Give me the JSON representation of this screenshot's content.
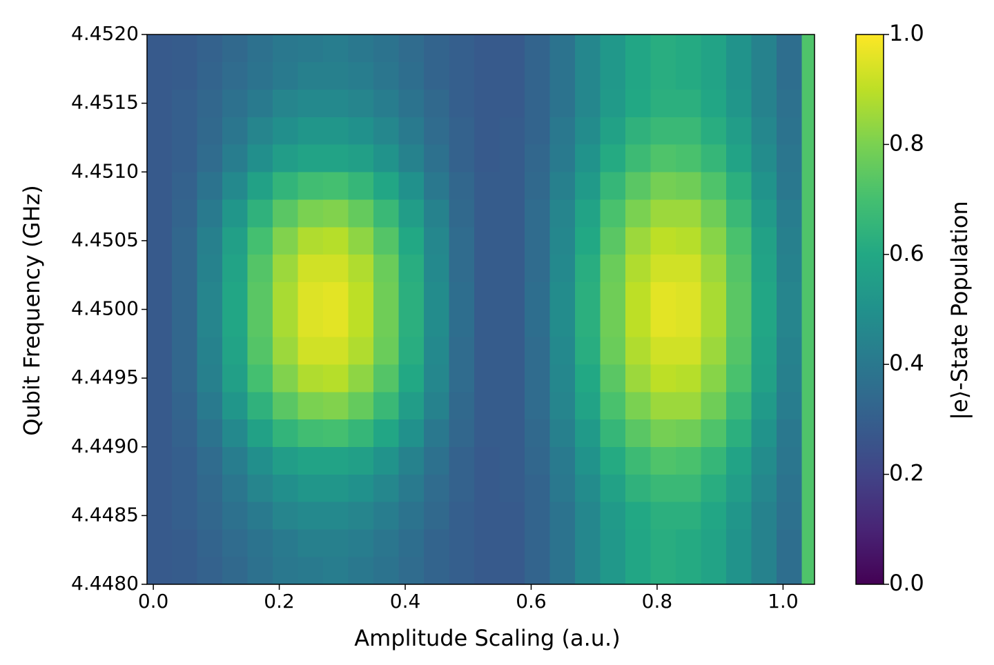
{
  "chart_data": {
    "type": "heatmap",
    "xlabel": "Amplitude Scaling (a.u.)",
    "ylabel": "Qubit Frequency (GHz)",
    "colormap": "viridis",
    "x_edges": [
      -0.01,
      0.03,
      0.07,
      0.11,
      0.15,
      0.19,
      0.23,
      0.27,
      0.31,
      0.35,
      0.39,
      0.43,
      0.47,
      0.51,
      0.55,
      0.59,
      0.63,
      0.67,
      0.71,
      0.75,
      0.79,
      0.83,
      0.87,
      0.91,
      0.95,
      0.99,
      1.03,
      1.05
    ],
    "y_edges": [
      4.448,
      4.4482,
      4.4484,
      4.4486,
      4.4488,
      4.449,
      4.4492,
      4.4494,
      4.4496,
      4.4498,
      4.45,
      4.4502,
      4.4504,
      4.4506,
      4.4508,
      4.451,
      4.4512,
      4.4514,
      4.4516,
      4.4518,
      4.452
    ],
    "z": [
      [
        0.28,
        0.29,
        0.31,
        0.34,
        0.37,
        0.4,
        0.41,
        0.42,
        0.4,
        0.38,
        0.35,
        0.32,
        0.3,
        0.28,
        0.28,
        0.32,
        0.38,
        0.46,
        0.53,
        0.59,
        0.62,
        0.61,
        0.58,
        0.51,
        0.44,
        0.36,
        0.72
      ],
      [
        0.28,
        0.29,
        0.32,
        0.35,
        0.38,
        0.41,
        0.43,
        0.43,
        0.42,
        0.39,
        0.36,
        0.32,
        0.3,
        0.28,
        0.28,
        0.32,
        0.38,
        0.46,
        0.53,
        0.59,
        0.62,
        0.61,
        0.58,
        0.51,
        0.44,
        0.36,
        0.72
      ],
      [
        0.28,
        0.3,
        0.33,
        0.37,
        0.41,
        0.45,
        0.47,
        0.47,
        0.45,
        0.42,
        0.38,
        0.34,
        0.3,
        0.28,
        0.28,
        0.32,
        0.38,
        0.46,
        0.54,
        0.6,
        0.63,
        0.63,
        0.59,
        0.52,
        0.44,
        0.37,
        0.72
      ],
      [
        0.28,
        0.3,
        0.34,
        0.39,
        0.45,
        0.49,
        0.52,
        0.52,
        0.5,
        0.46,
        0.41,
        0.35,
        0.31,
        0.28,
        0.29,
        0.32,
        0.4,
        0.48,
        0.57,
        0.64,
        0.67,
        0.67,
        0.62,
        0.55,
        0.46,
        0.38,
        0.72
      ],
      [
        0.28,
        0.3,
        0.35,
        0.42,
        0.49,
        0.55,
        0.58,
        0.58,
        0.56,
        0.51,
        0.44,
        0.37,
        0.31,
        0.28,
        0.29,
        0.33,
        0.41,
        0.51,
        0.61,
        0.68,
        0.72,
        0.71,
        0.66,
        0.58,
        0.48,
        0.39,
        0.72
      ],
      [
        0.28,
        0.31,
        0.38,
        0.47,
        0.57,
        0.65,
        0.69,
        0.7,
        0.66,
        0.59,
        0.5,
        0.4,
        0.33,
        0.29,
        0.29,
        0.34,
        0.43,
        0.54,
        0.66,
        0.74,
        0.79,
        0.78,
        0.72,
        0.63,
        0.51,
        0.4,
        0.72
      ],
      [
        0.28,
        0.32,
        0.41,
        0.52,
        0.64,
        0.74,
        0.8,
        0.81,
        0.76,
        0.67,
        0.55,
        0.44,
        0.34,
        0.29,
        0.29,
        0.35,
        0.45,
        0.58,
        0.71,
        0.8,
        0.85,
        0.85,
        0.78,
        0.67,
        0.54,
        0.42,
        0.72
      ],
      [
        0.28,
        0.33,
        0.43,
        0.56,
        0.7,
        0.81,
        0.88,
        0.89,
        0.83,
        0.73,
        0.6,
        0.46,
        0.35,
        0.29,
        0.29,
        0.35,
        0.46,
        0.6,
        0.74,
        0.85,
        0.9,
        0.89,
        0.82,
        0.71,
        0.57,
        0.43,
        0.72
      ],
      [
        0.28,
        0.33,
        0.44,
        0.58,
        0.73,
        0.85,
        0.93,
        0.93,
        0.88,
        0.77,
        0.62,
        0.47,
        0.35,
        0.29,
        0.29,
        0.35,
        0.47,
        0.62,
        0.77,
        0.88,
        0.93,
        0.93,
        0.85,
        0.73,
        0.58,
        0.44,
        0.72
      ],
      [
        0.28,
        0.33,
        0.45,
        0.59,
        0.74,
        0.87,
        0.95,
        0.96,
        0.9,
        0.78,
        0.63,
        0.48,
        0.36,
        0.29,
        0.29,
        0.36,
        0.48,
        0.63,
        0.78,
        0.9,
        0.96,
        0.95,
        0.87,
        0.74,
        0.59,
        0.45,
        0.72
      ],
      [
        0.28,
        0.33,
        0.45,
        0.59,
        0.74,
        0.87,
        0.95,
        0.96,
        0.9,
        0.78,
        0.63,
        0.48,
        0.36,
        0.29,
        0.29,
        0.36,
        0.48,
        0.63,
        0.78,
        0.9,
        0.96,
        0.95,
        0.87,
        0.74,
        0.59,
        0.45,
        0.72
      ],
      [
        0.28,
        0.33,
        0.44,
        0.58,
        0.73,
        0.85,
        0.93,
        0.93,
        0.88,
        0.77,
        0.62,
        0.47,
        0.35,
        0.29,
        0.29,
        0.35,
        0.47,
        0.62,
        0.77,
        0.88,
        0.93,
        0.93,
        0.85,
        0.73,
        0.58,
        0.44,
        0.72
      ],
      [
        0.28,
        0.33,
        0.43,
        0.56,
        0.7,
        0.81,
        0.88,
        0.89,
        0.83,
        0.73,
        0.6,
        0.46,
        0.35,
        0.29,
        0.29,
        0.35,
        0.46,
        0.6,
        0.74,
        0.85,
        0.9,
        0.89,
        0.82,
        0.71,
        0.57,
        0.43,
        0.72
      ],
      [
        0.28,
        0.32,
        0.41,
        0.52,
        0.64,
        0.74,
        0.8,
        0.81,
        0.76,
        0.67,
        0.55,
        0.44,
        0.34,
        0.29,
        0.29,
        0.35,
        0.45,
        0.58,
        0.71,
        0.8,
        0.85,
        0.85,
        0.78,
        0.67,
        0.54,
        0.42,
        0.72
      ],
      [
        0.28,
        0.31,
        0.38,
        0.47,
        0.57,
        0.65,
        0.69,
        0.7,
        0.66,
        0.59,
        0.5,
        0.4,
        0.33,
        0.29,
        0.29,
        0.34,
        0.43,
        0.54,
        0.66,
        0.74,
        0.79,
        0.78,
        0.72,
        0.63,
        0.51,
        0.4,
        0.72
      ],
      [
        0.28,
        0.3,
        0.35,
        0.42,
        0.49,
        0.55,
        0.58,
        0.58,
        0.56,
        0.51,
        0.44,
        0.37,
        0.31,
        0.28,
        0.29,
        0.33,
        0.41,
        0.51,
        0.61,
        0.68,
        0.72,
        0.71,
        0.66,
        0.58,
        0.48,
        0.39,
        0.72
      ],
      [
        0.28,
        0.3,
        0.34,
        0.39,
        0.45,
        0.49,
        0.52,
        0.52,
        0.5,
        0.46,
        0.41,
        0.35,
        0.31,
        0.28,
        0.29,
        0.32,
        0.4,
        0.48,
        0.57,
        0.64,
        0.67,
        0.67,
        0.62,
        0.55,
        0.46,
        0.38,
        0.72
      ],
      [
        0.28,
        0.3,
        0.33,
        0.37,
        0.41,
        0.45,
        0.47,
        0.47,
        0.45,
        0.42,
        0.38,
        0.34,
        0.3,
        0.28,
        0.28,
        0.32,
        0.38,
        0.46,
        0.54,
        0.6,
        0.63,
        0.63,
        0.59,
        0.52,
        0.44,
        0.37,
        0.72
      ],
      [
        0.28,
        0.29,
        0.32,
        0.35,
        0.38,
        0.41,
        0.43,
        0.43,
        0.42,
        0.39,
        0.36,
        0.32,
        0.3,
        0.28,
        0.28,
        0.32,
        0.38,
        0.46,
        0.53,
        0.59,
        0.62,
        0.61,
        0.58,
        0.51,
        0.44,
        0.36,
        0.72
      ],
      [
        0.28,
        0.29,
        0.31,
        0.34,
        0.37,
        0.4,
        0.41,
        0.42,
        0.4,
        0.38,
        0.35,
        0.32,
        0.3,
        0.28,
        0.28,
        0.32,
        0.38,
        0.46,
        0.53,
        0.59,
        0.62,
        0.61,
        0.58,
        0.51,
        0.44,
        0.36,
        0.72
      ]
    ],
    "xlim": [
      -0.01,
      1.05
    ],
    "ylim": [
      4.448,
      4.452
    ],
    "xticks": [
      {
        "value": 0,
        "label": "0.0"
      },
      0.2,
      0.4,
      0.6,
      0.8,
      {
        "value": 1,
        "label": "1.0"
      }
    ],
    "yticks": [
      {
        "value": 4.448,
        "label": "4.4480"
      },
      4.4485,
      {
        "value": 4.449,
        "label": "4.4490"
      },
      4.4495,
      {
        "value": 4.45,
        "label": "4.4500"
      },
      4.4505,
      {
        "value": 4.451,
        "label": "4.4510"
      },
      4.4515,
      {
        "value": 4.452,
        "label": "4.4520"
      }
    ],
    "colorbar": {
      "label": "|e⟩-State Population",
      "lim": [
        0,
        1
      ],
      "ticks": [
        {
          "value": 0,
          "label": "0.0"
        },
        0.2,
        0.4,
        0.6,
        0.8,
        {
          "value": 1,
          "label": "1.0"
        }
      ]
    }
  }
}
